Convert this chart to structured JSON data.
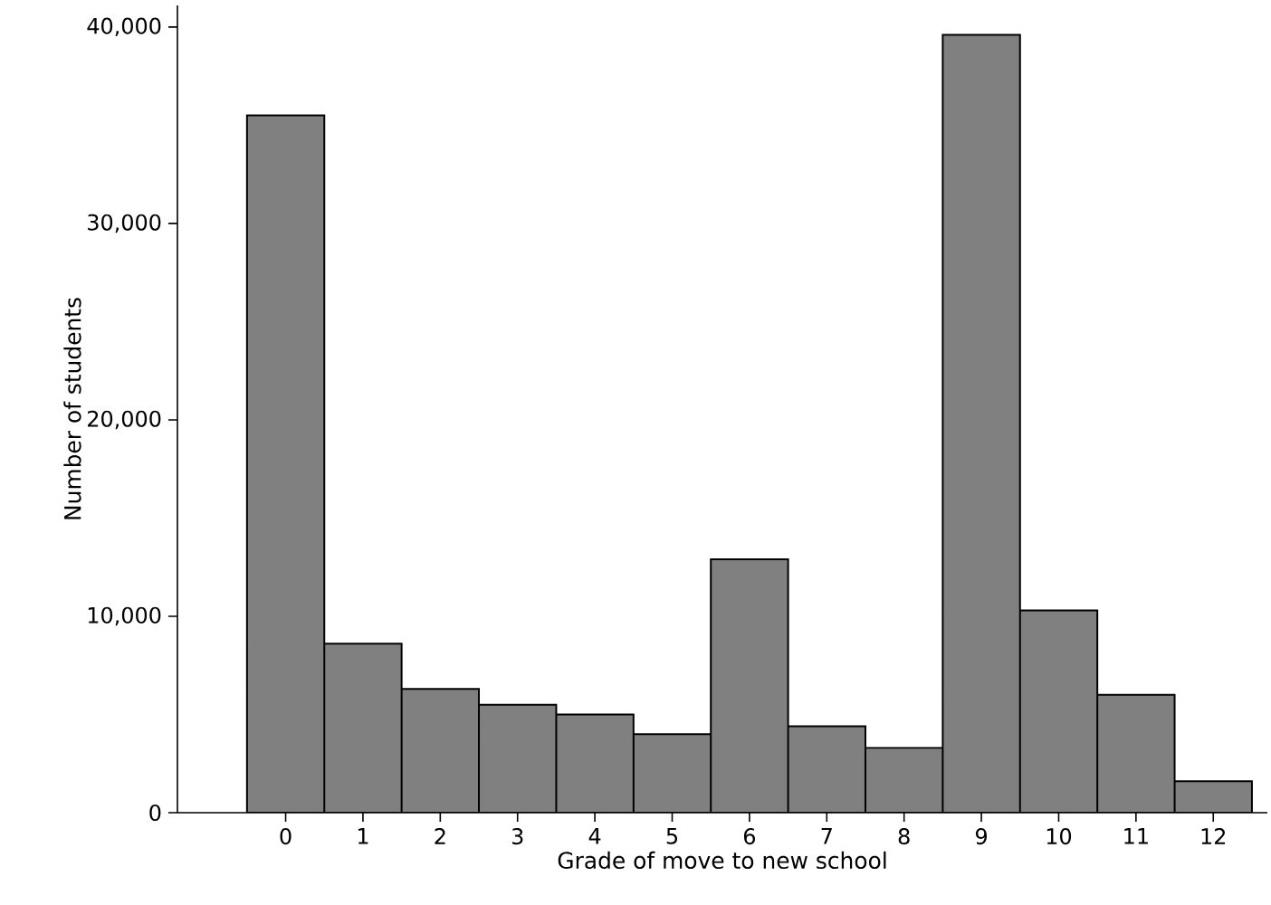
{
  "chart_data": {
    "type": "bar",
    "xlabel": "Grade of move to new school",
    "ylabel": "Number of students",
    "categories": [
      "0",
      "1",
      "2",
      "3",
      "4",
      "5",
      "6",
      "7",
      "8",
      "9",
      "10",
      "11",
      "12"
    ],
    "values": [
      35500,
      8600,
      6300,
      5500,
      5000,
      4000,
      12900,
      4400,
      3300,
      39600,
      10300,
      6000,
      1600
    ],
    "color": "#808080",
    "ylim": [
      0,
      41100
    ],
    "yticks": [
      0,
      {
        "value": 10000,
        "label": "10,000"
      },
      {
        "value": 20000,
        "label": "20,000"
      },
      {
        "value": 30000,
        "label": "30,000"
      },
      {
        "value": 40000,
        "label": "40,000"
      }
    ],
    "grid": false
  }
}
